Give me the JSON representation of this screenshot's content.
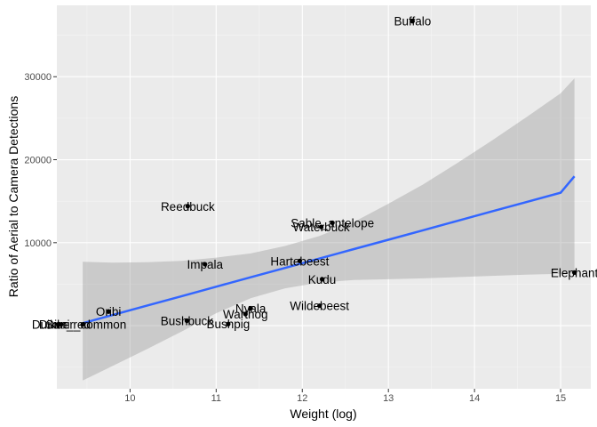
{
  "chart_data": {
    "type": "scatter",
    "title": "",
    "xlabel": "Weight (log)",
    "ylabel": "Ratio of Aerial to Camera Detections",
    "xlim": [
      9.15,
      15.35
    ],
    "ylim": [
      -7600,
      38600
    ],
    "xticks": [
      10,
      11,
      12,
      13,
      14,
      15
    ],
    "yticks": [
      0,
      10000,
      20000,
      30000
    ],
    "ytick_labels": [
      "0",
      "10000",
      "20000",
      "30000"
    ],
    "xtick_labels": [
      "10",
      "11",
      "12",
      "13",
      "14",
      "15"
    ],
    "grid": true,
    "colors": {
      "panel": "#ebebeb",
      "grid_major": "#ffffff",
      "point": "#000000",
      "fit_line": "#3366ff",
      "ribbon": "#999999"
    },
    "points": [
      {
        "label": "Buffalo",
        "x": 13.28,
        "y": 36700
      },
      {
        "label": "Elephant",
        "x": 15.16,
        "y": 6400
      },
      {
        "label": "Reedbuck",
        "x": 10.67,
        "y": 14400
      },
      {
        "label": "Sable_antelope",
        "x": 12.35,
        "y": 12400
      },
      {
        "label": "Waterbuck",
        "x": 12.22,
        "y": 11900
      },
      {
        "label": "Hartebeest",
        "x": 11.97,
        "y": 7800
      },
      {
        "label": "Impala",
        "x": 10.87,
        "y": 7400
      },
      {
        "label": "Kudu",
        "x": 12.23,
        "y": 5600
      },
      {
        "label": "Wildebeest",
        "x": 12.2,
        "y": 2400
      },
      {
        "label": "Nyala",
        "x": 11.4,
        "y": 2100
      },
      {
        "label": "Warthog",
        "x": 11.34,
        "y": 1400
      },
      {
        "label": "Oribi",
        "x": 9.75,
        "y": 1700
      },
      {
        "label": "Bushbuck",
        "x": 10.66,
        "y": 600
      },
      {
        "label": "Bushpig",
        "x": 11.14,
        "y": 200
      },
      {
        "label": "Duiker_common",
        "x": 9.45,
        "y": 150
      },
      {
        "label": "Duiker_red",
        "x": 9.2,
        "y": 150
      },
      {
        "label": "Suni",
        "x": 9.16,
        "y": 150
      }
    ],
    "fit": {
      "method": "linear",
      "x": [
        9.45,
        9.8,
        10.2,
        10.6,
        11.0,
        11.4,
        11.8,
        12.2,
        12.6,
        13.0,
        13.4,
        13.8,
        14.2,
        14.6,
        15.0,
        15.16
      ],
      "y": [
        300,
        1290,
        2430,
        3560,
        4690,
        5830,
        6960,
        8090,
        9230,
        10360,
        11490,
        12630,
        13760,
        14890,
        16030,
        18000
      ],
      "lower": [
        -6600,
        -4850,
        -2800,
        -700,
        1500,
        3300,
        4500,
        5200,
        5500,
        5600,
        5700,
        5850,
        6000,
        6150,
        6250,
        6300
      ],
      "upper": [
        7700,
        7600,
        7650,
        7800,
        8200,
        8700,
        9600,
        10800,
        12500,
        14700,
        17000,
        19600,
        22300,
        25100,
        28000,
        29800
      ]
    }
  }
}
